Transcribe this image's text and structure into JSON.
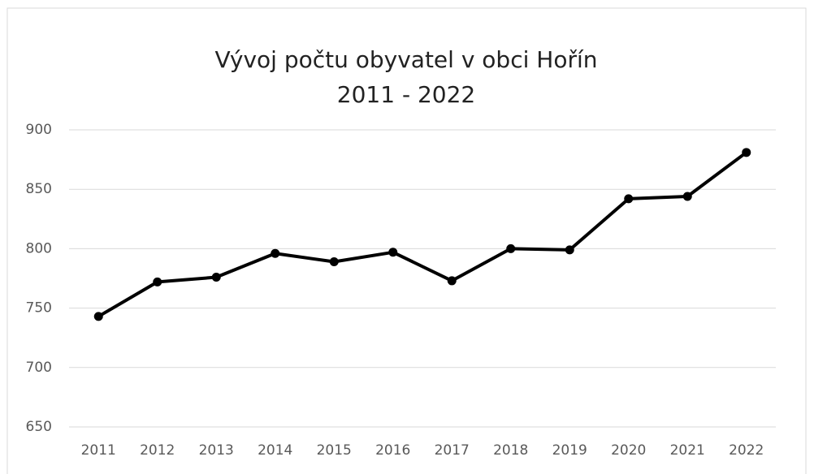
{
  "chart_data": {
    "type": "line",
    "title": [
      "Vývoj počtu obyvatel v obci Hořín",
      "2011 - 2022"
    ],
    "categories": [
      "2011",
      "2012",
      "2013",
      "2014",
      "2015",
      "2016",
      "2017",
      "2018",
      "2019",
      "2020",
      "2021",
      "2022"
    ],
    "values": [
      743,
      772,
      776,
      796,
      789,
      797,
      773,
      800,
      799,
      842,
      844,
      881
    ],
    "color": "#000000",
    "ylim": [
      650,
      900
    ],
    "yticks": [
      650,
      700,
      750,
      800,
      850,
      900
    ],
    "grid": true
  }
}
